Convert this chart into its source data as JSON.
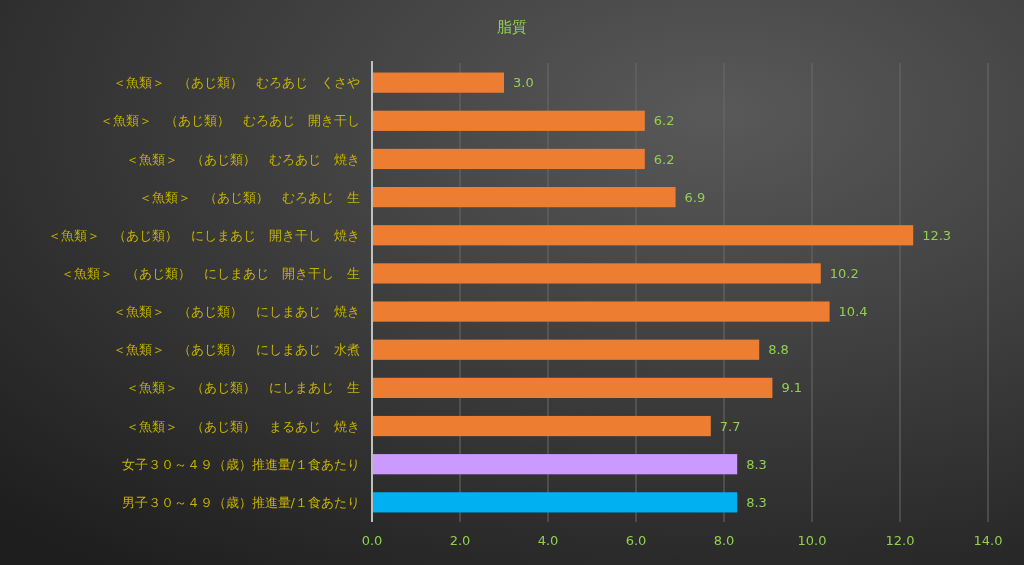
{
  "chart_data": {
    "type": "bar",
    "orientation": "horizontal",
    "title": "脂質",
    "categories": [
      "＜魚類＞　（あじ類）　むろあじ　くさや",
      "＜魚類＞　（あじ類）　むろあじ　開き干し",
      "＜魚類＞　（あじ類）　むろあじ　焼き",
      "＜魚類＞　（あじ類）　むろあじ　生",
      "＜魚類＞　（あじ類）　にしまあじ　開き干し　焼き",
      "＜魚類＞　（あじ類）　にしまあじ　開き干し　生",
      "＜魚類＞　（あじ類）　にしまあじ　焼き",
      "＜魚類＞　（あじ類）　にしまあじ　水煮",
      "＜魚類＞　（あじ類）　にしまあじ　生",
      "＜魚類＞　（あじ類）　まるあじ　焼き",
      "女子３０～４９（歳）推進量/１食あたり",
      "男子３０～４９（歳）推進量/１食あたり"
    ],
    "values": [
      3.0,
      6.2,
      6.2,
      6.9,
      12.3,
      10.2,
      10.4,
      8.8,
      9.1,
      7.7,
      8.3,
      8.3
    ],
    "colors": [
      "#ed7d31",
      "#ed7d31",
      "#ed7d31",
      "#ed7d31",
      "#ed7d31",
      "#ed7d31",
      "#ed7d31",
      "#ed7d31",
      "#ed7d31",
      "#ed7d31",
      "#cc99ff",
      "#00b0f0"
    ],
    "xlim": [
      0,
      14
    ],
    "xticks": [
      {
        "value": 0,
        "label": "0.0"
      },
      {
        "value": 2,
        "label": "2.0"
      },
      {
        "value": 4,
        "label": "4.0"
      },
      {
        "value": 6,
        "label": "6.0"
      },
      {
        "value": 8,
        "label": "8.0"
      },
      {
        "value": 10,
        "label": "10.0"
      },
      {
        "value": 12,
        "label": "12.0"
      },
      {
        "value": 14,
        "label": "14.0"
      }
    ],
    "value_labels": [
      "3.0",
      "6.2",
      "6.2",
      "6.9",
      "12.3",
      "10.2",
      "10.4",
      "8.8",
      "9.1",
      "7.7",
      "8.3",
      "8.3"
    ],
    "grid": "x"
  }
}
